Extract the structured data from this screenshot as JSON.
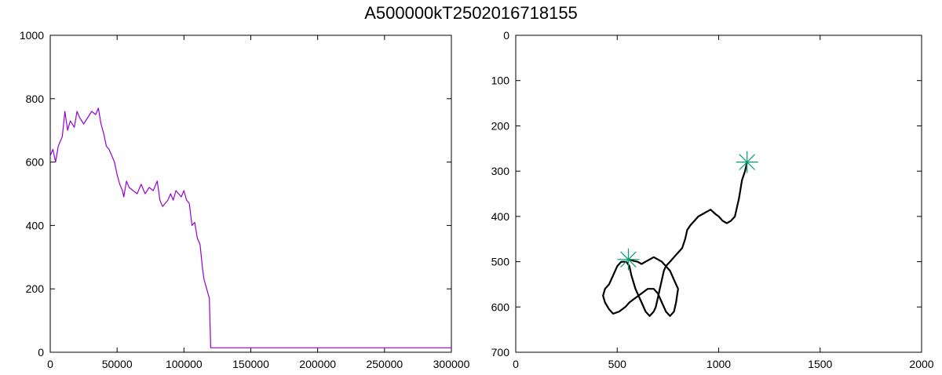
{
  "title": "A500000kT2502016718155",
  "chart_data": [
    {
      "type": "line",
      "title": "",
      "xlabel": "",
      "ylabel": "",
      "xlim": [
        0,
        300000
      ],
      "ylim": [
        0,
        1000
      ],
      "xticks": [
        0,
        50000,
        100000,
        150000,
        200000,
        250000,
        300000
      ],
      "xtick_labels": [
        "0",
        "50000",
        "100000",
        "150000",
        "200000",
        "250000",
        "300000"
      ],
      "yticks": [
        0,
        200,
        400,
        600,
        800,
        1000
      ],
      "ytick_labels": [
        "0",
        "200",
        "400",
        "600",
        "800",
        "1000"
      ],
      "grid": false,
      "series": [
        {
          "color": "#9400d3",
          "x": [
            0,
            2000,
            4000,
            6000,
            9000,
            11000,
            13000,
            15000,
            18000,
            20000,
            22000,
            25000,
            28000,
            31000,
            34000,
            36000,
            38000,
            40000,
            42000,
            44000,
            46000,
            48000,
            50000,
            52000,
            54000,
            55000,
            57000,
            59000,
            62000,
            65000,
            68000,
            71000,
            74000,
            77000,
            80000,
            82000,
            84000,
            86000,
            88000,
            90000,
            92000,
            94000,
            96000,
            98000,
            100000,
            102000,
            104000,
            106000,
            108000,
            110000,
            112000,
            114000,
            115000,
            117000,
            119000,
            120000,
            121000,
            300000
          ],
          "y": [
            620,
            640,
            600,
            650,
            680,
            760,
            700,
            730,
            710,
            760,
            740,
            720,
            740,
            760,
            750,
            770,
            720,
            690,
            650,
            640,
            620,
            600,
            560,
            530,
            510,
            490,
            540,
            520,
            510,
            500,
            530,
            500,
            520,
            510,
            540,
            480,
            460,
            470,
            480,
            500,
            480,
            510,
            500,
            490,
            510,
            480,
            470,
            400,
            410,
            360,
            340,
            260,
            230,
            200,
            170,
            14,
            14,
            14
          ]
        }
      ]
    },
    {
      "type": "scatter",
      "title": "",
      "xlabel": "",
      "ylabel": "",
      "xlim": [
        0,
        2000
      ],
      "ylim": [
        700,
        0
      ],
      "xticks": [
        0,
        500,
        1000,
        1500,
        2000
      ],
      "xtick_labels": [
        "0",
        "500",
        "1000",
        "1500",
        "2000"
      ],
      "yticks": [
        0,
        100,
        200,
        300,
        400,
        500,
        600,
        700
      ],
      "ytick_labels": [
        "0",
        "100",
        "200",
        "300",
        "400",
        "500",
        "600",
        "700"
      ],
      "grid": false,
      "series": [
        {
          "color": "#000000",
          "x": [
            1140,
            1130,
            1115,
            1100,
            1090,
            1080,
            1060,
            1040,
            1020,
            1000,
            985,
            960,
            940,
            920,
            900,
            880,
            860,
            845,
            835,
            820,
            800,
            780,
            760,
            740,
            730,
            720,
            710,
            700,
            690,
            680,
            660,
            640,
            620,
            600,
            590,
            580,
            570,
            560,
            545,
            520,
            500,
            480,
            460,
            440,
            430,
            440,
            460,
            480,
            510,
            540,
            560,
            590,
            620,
            650,
            680,
            700,
            720,
            740,
            760,
            780,
            790,
            800,
            780,
            760,
            740,
            720,
            700,
            680,
            660,
            640,
            620,
            600,
            580,
            560
          ],
          "y": [
            280,
            300,
            320,
            360,
            380,
            400,
            410,
            415,
            410,
            400,
            395,
            385,
            390,
            395,
            400,
            410,
            420,
            430,
            450,
            470,
            480,
            490,
            500,
            510,
            520,
            540,
            560,
            580,
            600,
            610,
            620,
            610,
            590,
            570,
            560,
            545,
            530,
            510,
            500,
            500,
            510,
            530,
            550,
            560,
            575,
            590,
            605,
            615,
            610,
            600,
            590,
            580,
            570,
            560,
            560,
            570,
            590,
            610,
            620,
            610,
            590,
            560,
            540,
            520,
            510,
            500,
            495,
            490,
            495,
            500,
            505,
            500,
            498,
            495
          ]
        },
        {
          "color": "#009e73",
          "marker": "asterisk",
          "x": [
            1140,
            555
          ],
          "y": [
            280,
            495
          ]
        }
      ]
    }
  ]
}
